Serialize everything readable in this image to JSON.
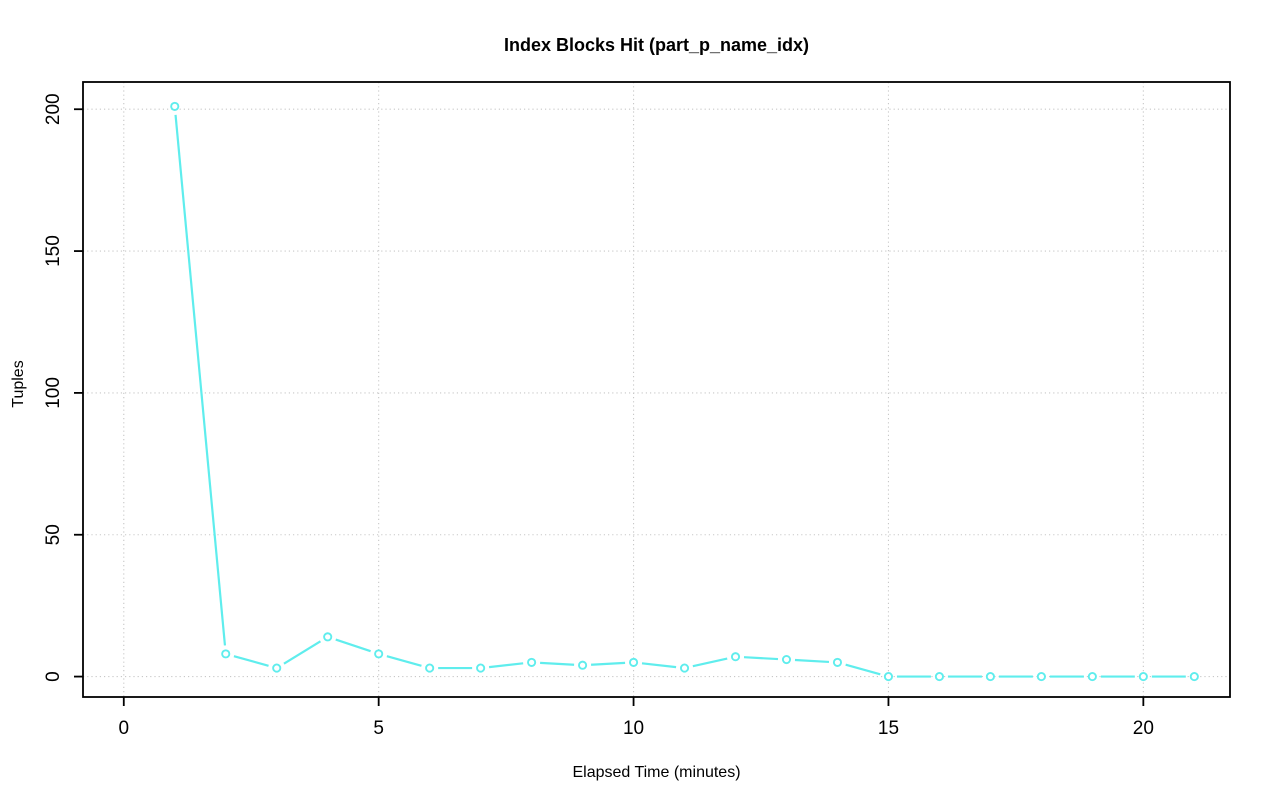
{
  "chart_data": {
    "type": "line",
    "title": "Index Blocks Hit (part_p_name_idx)",
    "xlabel": "Elapsed Time (minutes)",
    "ylabel": "Tuples",
    "x": [
      1,
      2,
      3,
      4,
      5,
      6,
      7,
      8,
      9,
      10,
      11,
      12,
      13,
      14,
      15,
      16,
      17,
      18,
      19,
      20,
      21
    ],
    "values": [
      201,
      8,
      3,
      14,
      8,
      3,
      3,
      5,
      4,
      5,
      3,
      7,
      6,
      5,
      0,
      0,
      0,
      0,
      0,
      0,
      0
    ],
    "x_ticks": [
      0,
      5,
      10,
      15,
      20
    ],
    "y_ticks": [
      0,
      50,
      100,
      150,
      200
    ],
    "xlim": [
      -0.8,
      21.7
    ],
    "ylim": [
      -7.2,
      209.6
    ],
    "grid": "dotted",
    "legend": "none",
    "marker": "open-circle",
    "line_style": "segments-with-marker-gaps",
    "colors": {
      "series": "#5FEDED",
      "grid": "#C8C8C8",
      "axis": "#000000",
      "background": "#FFFFFF",
      "title": "#000000"
    }
  }
}
